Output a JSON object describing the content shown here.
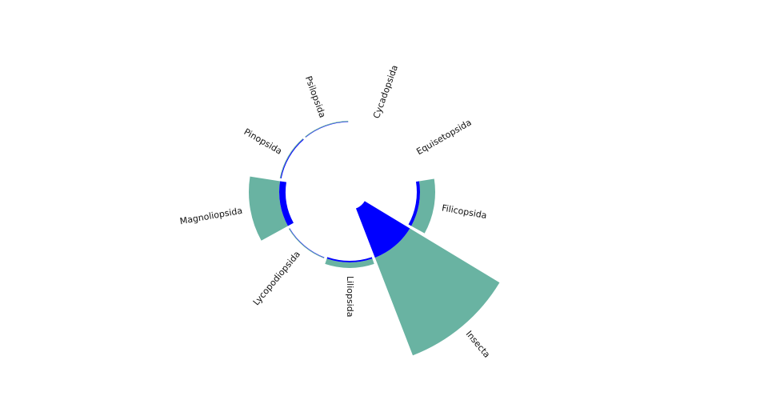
{
  "chart_data": {
    "type": "radial-bar",
    "categories": [
      "Psilopsida",
      "Cycadopsida",
      "Equisetopsida",
      "Filicopsida",
      "Insecta",
      "Liliopsida",
      "Lycopodiopsida",
      "Magnoliopsida",
      "Pinopsida"
    ],
    "series": [
      {
        "color": "#69b3a2",
        "values": [
          1,
          0,
          0,
          19,
          131,
          7,
          1,
          38,
          1
        ]
      },
      {
        "color": "#0000ff",
        "values": [
          0.5,
          0,
          0,
          4,
          66,
          2,
          0.5,
          8,
          1
        ]
      }
    ]
  }
}
